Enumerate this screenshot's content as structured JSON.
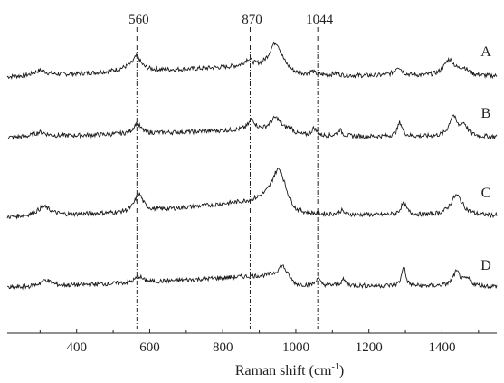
{
  "chart_data": {
    "type": "line",
    "xlabel": "Raman shift (cm",
    "xlabel_sup": "-1",
    "xlabel_close": ")",
    "ylabel": "",
    "xlim": [
      210,
      1550
    ],
    "x_ticks": [
      400,
      600,
      800,
      1000,
      1200,
      1400
    ],
    "grid": false,
    "reference_lines": [
      {
        "label": "560",
        "x": 565
      },
      {
        "label": "870",
        "x": 875
      },
      {
        "label": "1044",
        "x": 1060
      }
    ],
    "series": [
      {
        "name": "A",
        "baseline": 0,
        "peaks": [
          [
            300,
            0.4,
            20
          ],
          [
            545,
            0.35,
            40
          ],
          [
            565,
            0.95,
            12
          ],
          [
            870,
            0.45,
            12
          ],
          [
            945,
            2.3,
            22
          ],
          [
            1045,
            0.25,
            8
          ],
          [
            1110,
            0.15,
            10
          ],
          [
            1280,
            0.7,
            12
          ],
          [
            1420,
            1.25,
            18
          ],
          [
            1460,
            0.5,
            15
          ]
        ],
        "ramp": [
          [
            210,
            0
          ],
          [
            560,
            0.4
          ],
          [
            870,
            0.8
          ],
          [
            1000,
            0.1
          ],
          [
            1550,
            0.05
          ]
        ]
      },
      {
        "name": "B",
        "baseline": 0,
        "peaks": [
          [
            300,
            0.35,
            20
          ],
          [
            565,
            0.8,
            12
          ],
          [
            880,
            0.8,
            10
          ],
          [
            945,
            1.2,
            20
          ],
          [
            985,
            0.4,
            12
          ],
          [
            1050,
            0.6,
            8
          ],
          [
            1120,
            0.5,
            8
          ],
          [
            1285,
            1.1,
            8
          ],
          [
            1430,
            1.6,
            12
          ],
          [
            1460,
            0.9,
            12
          ]
        ],
        "ramp": [
          [
            210,
            0
          ],
          [
            560,
            0.3
          ],
          [
            870,
            0.6
          ],
          [
            1000,
            0.1
          ],
          [
            1550,
            0.05
          ]
        ]
      },
      {
        "name": "C",
        "baseline": 0,
        "peaks": [
          [
            310,
            0.7,
            22
          ],
          [
            570,
            1.4,
            14
          ],
          [
            955,
            2.6,
            22
          ],
          [
            1125,
            0.3,
            8
          ],
          [
            1295,
            0.9,
            10
          ],
          [
            1440,
            1.6,
            20
          ]
        ],
        "ramp": [
          [
            210,
            0
          ],
          [
            560,
            0.4
          ],
          [
            870,
            1.2
          ],
          [
            940,
            1.5
          ],
          [
            1000,
            0.2
          ],
          [
            1550,
            0.1
          ]
        ]
      },
      {
        "name": "D",
        "baseline": 0,
        "peaks": [
          [
            315,
            0.5,
            18
          ],
          [
            570,
            0.5,
            12
          ],
          [
            965,
            0.8,
            15
          ],
          [
            1060,
            0.6,
            6
          ],
          [
            1130,
            0.45,
            8
          ],
          [
            1295,
            1.6,
            6
          ],
          [
            1440,
            1.1,
            12
          ],
          [
            1470,
            0.5,
            12
          ]
        ],
        "ramp": [
          [
            210,
            0
          ],
          [
            560,
            0.4
          ],
          [
            870,
            0.9
          ],
          [
            960,
            1.0
          ],
          [
            1000,
            0.2
          ],
          [
            1550,
            0.1
          ]
        ]
      }
    ]
  }
}
